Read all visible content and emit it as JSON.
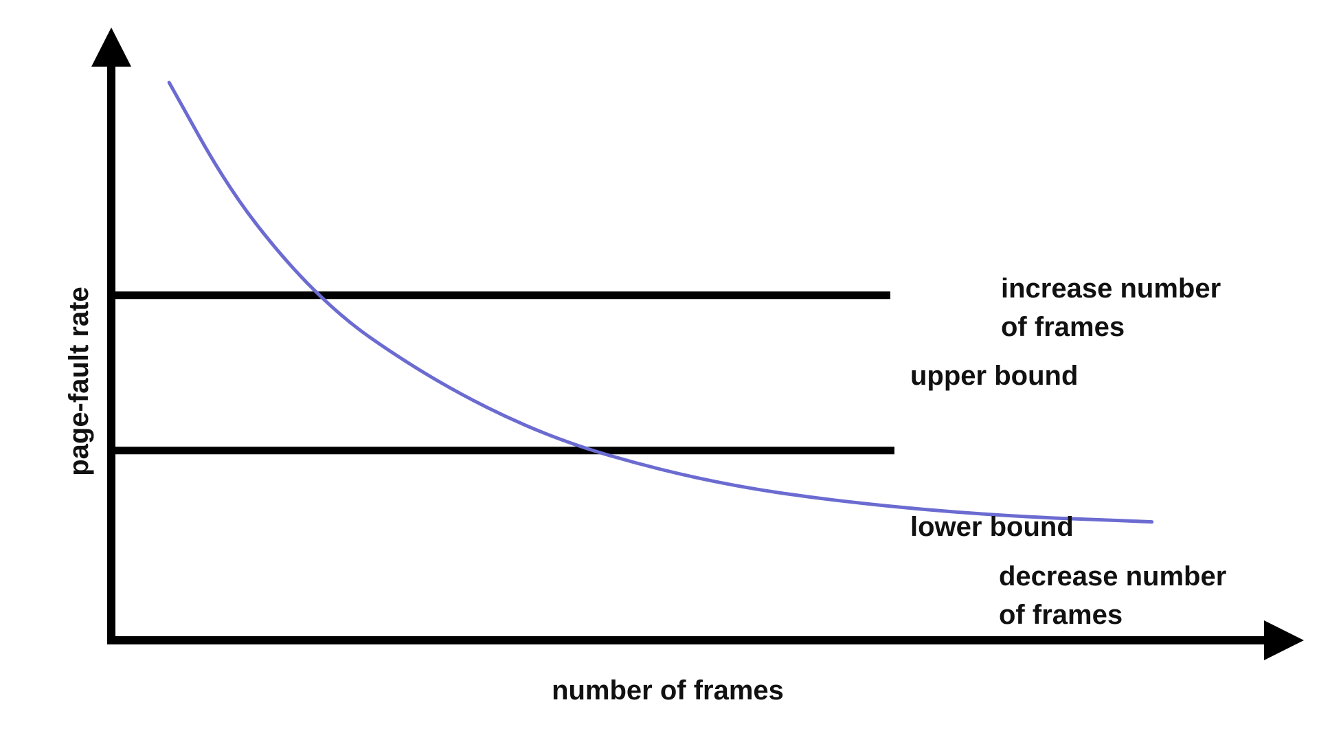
{
  "chart_data": {
    "type": "line",
    "title": "",
    "xlabel": "number of frames",
    "ylabel": "page-fault rate",
    "grid": false,
    "legend": "none",
    "series": [
      {
        "values": [
          [
            0.05,
            0.97
          ],
          [
            0.1,
            0.79
          ],
          [
            0.15,
            0.66
          ],
          [
            0.2,
            0.56
          ],
          [
            0.25,
            0.49
          ],
          [
            0.3,
            0.43
          ],
          [
            0.35,
            0.38
          ],
          [
            0.4,
            0.34
          ],
          [
            0.45,
            0.31
          ],
          [
            0.5,
            0.285
          ],
          [
            0.55,
            0.265
          ],
          [
            0.6,
            0.25
          ],
          [
            0.65,
            0.238
          ],
          [
            0.7,
            0.228
          ],
          [
            0.75,
            0.22
          ],
          [
            0.8,
            0.214
          ],
          [
            0.85,
            0.21
          ],
          [
            0.9,
            0.206
          ]
        ]
      }
    ],
    "thresholds": [
      {
        "id": "upper",
        "label": "upper bound",
        "value": 0.6
      },
      {
        "id": "lower",
        "label": "lower bound",
        "value": 0.33
      }
    ],
    "annotations": {
      "above_upper": [
        "increase number",
        "of frames"
      ],
      "below_lower": [
        "decrease number",
        "of frames"
      ]
    },
    "colors": {
      "curve": "#6b6bd1",
      "axes": "#000000",
      "lines": "#000000",
      "text": "#111111"
    }
  }
}
